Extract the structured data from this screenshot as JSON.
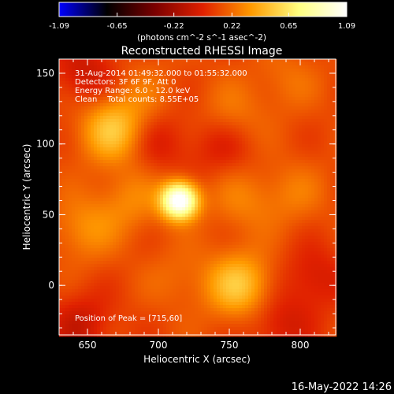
{
  "chart_data": {
    "type": "heatmap",
    "title": "Reconstructed RHESSI Image",
    "xlabel": "Heliocentric X (arcsec)",
    "ylabel": "Heliocentric Y (arcsec)",
    "xlim": [
      630,
      825
    ],
    "ylim": [
      -35,
      160
    ],
    "x_ticks": [
      "650",
      "700",
      "750",
      "800"
    ],
    "x_tick_values": [
      650,
      700,
      750,
      800
    ],
    "y_ticks": [
      "0",
      "50",
      "100",
      "150"
    ],
    "y_tick_values": [
      0,
      50,
      100,
      150
    ],
    "colorbar": {
      "min": -1.09,
      "max": 1.09,
      "tick_labels": [
        "-1.09",
        "-0.65",
        "-0.22",
        "0.22",
        "0.65",
        "1.09"
      ],
      "tick_values": [
        -1.09,
        -0.65,
        -0.22,
        0.22,
        0.65,
        1.09
      ],
      "unit_label": "(photons cm^-2 s^-1 asec^-2)",
      "colors": [
        "#0000ff",
        "#000000",
        "#7a0000",
        "#e02000",
        "#ff9a00",
        "#ffff80",
        "#ffffff"
      ]
    },
    "annotations": [
      "31-Aug-2014 01:49:32.000 to 01:55:32.000",
      "Detectors: 3F 6F 9F, Att 0",
      "Energy Range: 6.0 - 12.0 keV",
      "Clean    Total counts: 8.55E+05"
    ],
    "peak_label": "Position of Peak = [715,60]",
    "peak": {
      "x": 715,
      "y": 60,
      "value": 1.09
    },
    "blobs": [
      {
        "x": 715,
        "y": 60,
        "value": 1.09
      },
      {
        "x": 668,
        "y": 110,
        "value": 0.45
      },
      {
        "x": 757,
        "y": 0,
        "value": 0.45
      },
      {
        "x": 752,
        "y": 120,
        "value": 0.2
      },
      {
        "x": 795,
        "y": 65,
        "value": 0.18
      },
      {
        "x": 790,
        "y": 145,
        "value": 0.16
      },
      {
        "x": 690,
        "y": 135,
        "value": 0.15
      },
      {
        "x": 715,
        "y": 5,
        "value": 0.15
      },
      {
        "x": 760,
        "y": 60,
        "value": 0.2
      },
      {
        "x": 648,
        "y": 40,
        "value": 0.25
      },
      {
        "x": 680,
        "y": 60,
        "value": 0.22
      },
      {
        "x": 648,
        "y": 150,
        "value": -0.15
      },
      {
        "x": 645,
        "y": -28,
        "value": -0.15
      },
      {
        "x": 745,
        "y": 100,
        "value": -0.1
      },
      {
        "x": 810,
        "y": 5,
        "value": -0.12
      },
      {
        "x": 785,
        "y": -28,
        "value": -0.12
      },
      {
        "x": 700,
        "y": 102,
        "value": -0.1
      }
    ]
  },
  "footer": {
    "timestamp": "16-May-2022 14:26"
  }
}
